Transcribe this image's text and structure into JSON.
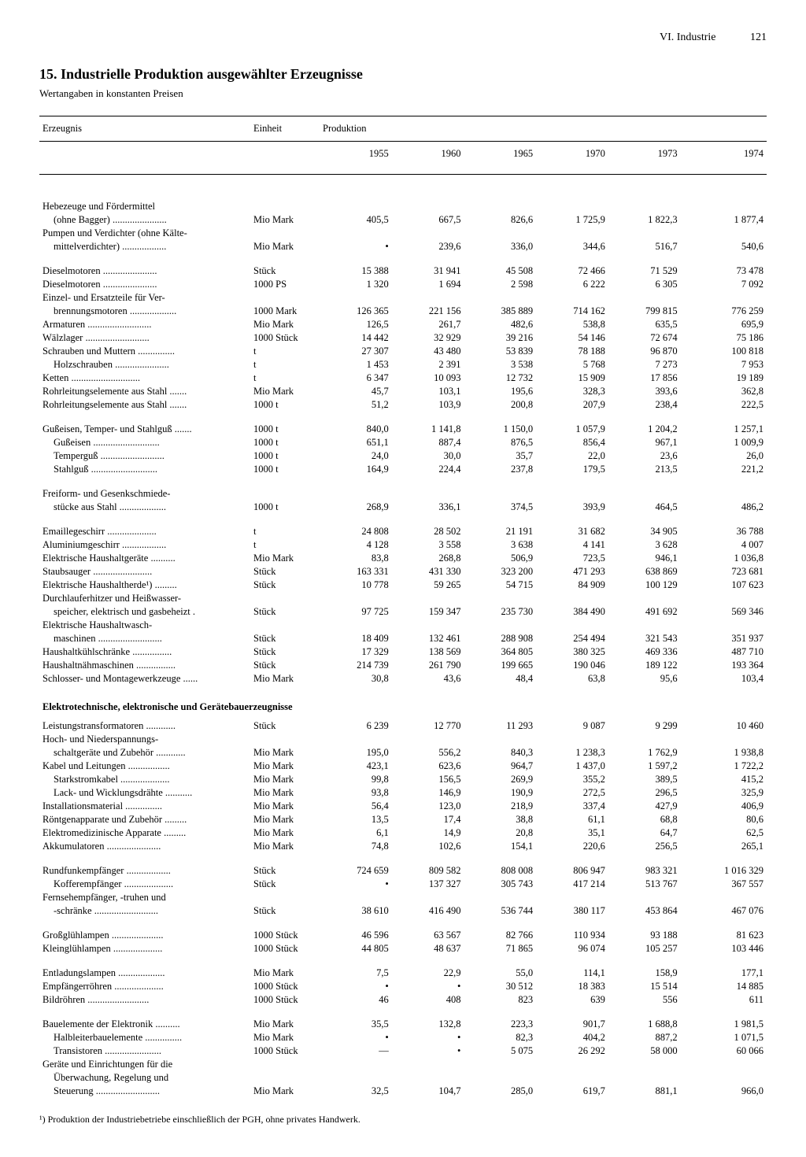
{
  "header": {
    "section": "VI. Industrie",
    "page": "121"
  },
  "title_num": "15.",
  "title": "Industrielle Produktion ausgewählter Erzeugnisse",
  "subtitle": "Wertangaben in konstanten Preisen",
  "col_product": "Erzeugnis",
  "col_unit": "Einheit",
  "col_production": "Produktion",
  "years": [
    "1955",
    "1960",
    "1965",
    "1970",
    "1973",
    "1974"
  ],
  "rows": [
    {
      "t": "biggap"
    },
    {
      "t": "row",
      "label": "Hebezeuge und Fördermittel",
      "cont": true
    },
    {
      "t": "row",
      "label": "(ohne Bagger)",
      "indent": 1,
      "unit": "Mio Mark",
      "v": [
        "405,5",
        "667,5",
        "826,6",
        "1 725,9",
        "1 822,3",
        "1 877,4"
      ]
    },
    {
      "t": "row",
      "label": "Pumpen und Verdichter (ohne Kälte-",
      "cont": true
    },
    {
      "t": "row",
      "label": "mittelverdichter)",
      "indent": 1,
      "unit": "Mio Mark",
      "v": [
        "•",
        "239,6",
        "336,0",
        "344,6",
        "516,7",
        "540,6"
      ]
    },
    {
      "t": "gap"
    },
    {
      "t": "row",
      "label": "Dieselmotoren",
      "unit": "Stück",
      "v": [
        "15 388",
        "31 941",
        "45 508",
        "72 466",
        "71 529",
        "73 478"
      ]
    },
    {
      "t": "row",
      "label": "Dieselmotoren",
      "unit": "1000 PS",
      "v": [
        "1 320",
        "1 694",
        "2 598",
        "6 222",
        "6 305",
        "7 092"
      ]
    },
    {
      "t": "row",
      "label": "Einzel- und Ersatzteile für Ver-",
      "cont": true
    },
    {
      "t": "row",
      "label": "brennungsmotoren",
      "indent": 1,
      "unit": "1000 Mark",
      "v": [
        "126 365",
        "221 156",
        "385 889",
        "714 162",
        "799 815",
        "776 259"
      ]
    },
    {
      "t": "row",
      "label": "Armaturen",
      "unit": "Mio Mark",
      "v": [
        "126,5",
        "261,7",
        "482,6",
        "538,8",
        "635,5",
        "695,9"
      ]
    },
    {
      "t": "row",
      "label": "Wälzlager",
      "unit": "1000 Stück",
      "v": [
        "14 442",
        "32 929",
        "39 216",
        "54 146",
        "72 674",
        "75 186"
      ]
    },
    {
      "t": "row",
      "label": "Schrauben und Muttern",
      "unit": "t",
      "v": [
        "27 307",
        "43 480",
        "53 839",
        "78 188",
        "96 870",
        "100 818"
      ]
    },
    {
      "t": "row",
      "label": "Holzschrauben",
      "indent": 1,
      "unit": "t",
      "v": [
        "1 453",
        "2 391",
        "3 538",
        "5 768",
        "7 273",
        "7 953"
      ]
    },
    {
      "t": "row",
      "label": "Ketten",
      "unit": "t",
      "v": [
        "6 347",
        "10 093",
        "12 732",
        "15 909",
        "17 856",
        "19 189"
      ]
    },
    {
      "t": "row",
      "label": "Rohrleitungselemente aus Stahl",
      "unit": "Mio Mark",
      "v": [
        "45,7",
        "103,1",
        "195,6",
        "328,3",
        "393,6",
        "362,8"
      ]
    },
    {
      "t": "row",
      "label": "Rohrleitungselemente aus Stahl",
      "unit": "1000 t",
      "v": [
        "51,2",
        "103,9",
        "200,8",
        "207,9",
        "238,4",
        "222,5"
      ]
    },
    {
      "t": "gap"
    },
    {
      "t": "row",
      "label": "Gußeisen, Temper- und Stahlguß",
      "unit": "1000 t",
      "v": [
        "840,0",
        "1 141,8",
        "1 150,0",
        "1 057,9",
        "1 204,2",
        "1 257,1"
      ]
    },
    {
      "t": "row",
      "label": "Gußeisen",
      "indent": 1,
      "unit": "1000 t",
      "v": [
        "651,1",
        "887,4",
        "876,5",
        "856,4",
        "967,1",
        "1 009,9"
      ]
    },
    {
      "t": "row",
      "label": "Temperguß",
      "indent": 1,
      "unit": "1000 t",
      "v": [
        "24,0",
        "30,0",
        "35,7",
        "22,0",
        "23,6",
        "26,0"
      ]
    },
    {
      "t": "row",
      "label": "Stahlguß",
      "indent": 1,
      "unit": "1000 t",
      "v": [
        "164,9",
        "224,4",
        "237,8",
        "179,5",
        "213,5",
        "221,2"
      ]
    },
    {
      "t": "gap"
    },
    {
      "t": "row",
      "label": "Freiform- und Gesenkschmiede-",
      "cont": true
    },
    {
      "t": "row",
      "label": "stücke aus Stahl",
      "indent": 1,
      "unit": "1000 t",
      "v": [
        "268,9",
        "336,1",
        "374,5",
        "393,9",
        "464,5",
        "486,2"
      ]
    },
    {
      "t": "gap"
    },
    {
      "t": "row",
      "label": "Emaillegeschirr",
      "unit": "t",
      "v": [
        "24 808",
        "28 502",
        "21 191",
        "31 682",
        "34 905",
        "36 788"
      ]
    },
    {
      "t": "row",
      "label": "Aluminiumgeschirr",
      "unit": "t",
      "v": [
        "4 128",
        "3 558",
        "3 638",
        "4 141",
        "3 628",
        "4 007"
      ]
    },
    {
      "t": "row",
      "label": "Elektrische Haushaltgeräte",
      "unit": "Mio Mark",
      "v": [
        "83,8",
        "268,8",
        "506,9",
        "723,5",
        "946,1",
        "1 036,8"
      ]
    },
    {
      "t": "row",
      "label": "Staubsauger",
      "unit": "Stück",
      "v": [
        "163 331",
        "431 330",
        "323 200",
        "471 293",
        "638 869",
        "723 681"
      ]
    },
    {
      "t": "row",
      "label": "Elektrische Haushaltherde¹)",
      "unit": "Stück",
      "v": [
        "10 778",
        "59 265",
        "54 715",
        "84 909",
        "100 129",
        "107 623"
      ]
    },
    {
      "t": "row",
      "label": "Durchlauferhitzer und Heißwasser-",
      "cont": true
    },
    {
      "t": "row",
      "label": "speicher, elektrisch und gasbeheizt .",
      "indent": 1,
      "unit": "Stück",
      "v": [
        "97 725",
        "159 347",
        "235 730",
        "384 490",
        "491 692",
        "569 346"
      ]
    },
    {
      "t": "row",
      "label": "Elektrische Haushaltwasch-",
      "cont": true
    },
    {
      "t": "row",
      "label": "maschinen",
      "indent": 1,
      "unit": "Stück",
      "v": [
        "18 409",
        "132 461",
        "288 908",
        "254 494",
        "321 543",
        "351 937"
      ]
    },
    {
      "t": "row",
      "label": "Haushaltkühlschränke",
      "unit": "Stück",
      "v": [
        "17 329",
        "138 569",
        "364 805",
        "380 325",
        "469 336",
        "487 710"
      ]
    },
    {
      "t": "row",
      "label": "Haushaltnähmaschinen",
      "unit": "Stück",
      "v": [
        "214 739",
        "261 790",
        "199 665",
        "190 046",
        "189 122",
        "193 364"
      ]
    },
    {
      "t": "row",
      "label": "Schlosser- und Montagewerkzeuge",
      "unit": "Mio Mark",
      "v": [
        "30,8",
        "43,6",
        "48,4",
        "63,8",
        "95,6",
        "103,4"
      ]
    },
    {
      "t": "sub",
      "label": "Elektrotechnische, elektronische und Gerätebauerzeugnisse"
    },
    {
      "t": "row",
      "label": "Leistungstransformatoren",
      "unit": "Stück",
      "v": [
        "6 239",
        "12 770",
        "11 293",
        "9 087",
        "9 299",
        "10 460"
      ]
    },
    {
      "t": "row",
      "label": "Hoch- und Niederspannungs-",
      "cont": true
    },
    {
      "t": "row",
      "label": "schaltgeräte und Zubehör",
      "indent": 1,
      "unit": "Mio Mark",
      "v": [
        "195,0",
        "556,2",
        "840,3",
        "1 238,3",
        "1 762,9",
        "1 938,8"
      ]
    },
    {
      "t": "row",
      "label": "Kabel und Leitungen",
      "unit": "Mio Mark",
      "v": [
        "423,1",
        "623,6",
        "964,7",
        "1 437,0",
        "1 597,2",
        "1 722,2"
      ]
    },
    {
      "t": "row",
      "label": "Starkstromkabel",
      "indent": 1,
      "unit": "Mio Mark",
      "v": [
        "99,8",
        "156,5",
        "269,9",
        "355,2",
        "389,5",
        "415,2"
      ]
    },
    {
      "t": "row",
      "label": "Lack- und Wicklungsdrähte",
      "indent": 1,
      "unit": "Mio Mark",
      "v": [
        "93,8",
        "146,9",
        "190,9",
        "272,5",
        "296,5",
        "325,9"
      ]
    },
    {
      "t": "row",
      "label": "Installationsmaterial",
      "unit": "Mio Mark",
      "v": [
        "56,4",
        "123,0",
        "218,9",
        "337,4",
        "427,9",
        "406,9"
      ]
    },
    {
      "t": "row",
      "label": "Röntgenapparate und Zubehör",
      "unit": "Mio Mark",
      "v": [
        "13,5",
        "17,4",
        "38,8",
        "61,1",
        "68,8",
        "80,6"
      ]
    },
    {
      "t": "row",
      "label": "Elektromedizinische Apparate",
      "unit": "Mio Mark",
      "v": [
        "6,1",
        "14,9",
        "20,8",
        "35,1",
        "64,7",
        "62,5"
      ]
    },
    {
      "t": "row",
      "label": "Akkumulatoren",
      "unit": "Mio Mark",
      "v": [
        "74,8",
        "102,6",
        "154,1",
        "220,6",
        "256,5",
        "265,1"
      ]
    },
    {
      "t": "gap"
    },
    {
      "t": "row",
      "label": "Rundfunkempfänger",
      "unit": "Stück",
      "v": [
        "724 659",
        "809 582",
        "808 008",
        "806 947",
        "983 321",
        "1 016 329"
      ]
    },
    {
      "t": "row",
      "label": "Kofferempfänger",
      "indent": 1,
      "unit": "Stück",
      "v": [
        "•",
        "137 327",
        "305 743",
        "417 214",
        "513 767",
        "367 557"
      ]
    },
    {
      "t": "row",
      "label": "Fernsehempfänger, -truhen und",
      "cont": true
    },
    {
      "t": "row",
      "label": "-schränke",
      "indent": 1,
      "unit": "Stück",
      "v": [
        "38 610",
        "416 490",
        "536 744",
        "380 117",
        "453 864",
        "467 076"
      ]
    },
    {
      "t": "gap"
    },
    {
      "t": "row",
      "label": "Großglühlampen",
      "unit": "1000 Stück",
      "v": [
        "46 596",
        "63 567",
        "82 766",
        "110 934",
        "93 188",
        "81 623"
      ]
    },
    {
      "t": "row",
      "label": "Kleinglühlampen",
      "unit": "1000 Stück",
      "v": [
        "44 805",
        "48 637",
        "71 865",
        "96 074",
        "105 257",
        "103 446"
      ]
    },
    {
      "t": "gap"
    },
    {
      "t": "row",
      "label": "Entladungslampen",
      "unit": "Mio Mark",
      "v": [
        "7,5",
        "22,9",
        "55,0",
        "114,1",
        "158,9",
        "177,1"
      ]
    },
    {
      "t": "row",
      "label": "Empfängerröhren",
      "unit": "1000 Stück",
      "v": [
        "•",
        "•",
        "30 512",
        "18 383",
        "15 514",
        "14 885"
      ]
    },
    {
      "t": "row",
      "label": "Bildröhren",
      "unit": "1000 Stück",
      "v": [
        "46",
        "408",
        "823",
        "639",
        "556",
        "611"
      ]
    },
    {
      "t": "gap"
    },
    {
      "t": "row",
      "label": "Bauelemente der Elektronik",
      "unit": "Mio Mark",
      "v": [
        "35,5",
        "132,8",
        "223,3",
        "901,7",
        "1 688,8",
        "1 981,5"
      ]
    },
    {
      "t": "row",
      "label": "Halbleiterbauelemente",
      "indent": 1,
      "unit": "Mio Mark",
      "v": [
        "•",
        "•",
        "82,3",
        "404,2",
        "887,2",
        "1 071,5"
      ]
    },
    {
      "t": "row",
      "label": "Transistoren",
      "indent": 1,
      "unit": "1000 Stück",
      "v": [
        "—",
        "•",
        "5 075",
        "26 292",
        "58 000",
        "60 066"
      ]
    },
    {
      "t": "row",
      "label": "Geräte und Einrichtungen für die",
      "cont": true
    },
    {
      "t": "row",
      "label": "Überwachung, Regelung und",
      "indent": 1,
      "cont": true
    },
    {
      "t": "row",
      "label": "Steuerung",
      "indent": 1,
      "unit": "Mio Mark",
      "v": [
        "32,5",
        "104,7",
        "285,0",
        "619,7",
        "881,1",
        "966,0"
      ]
    }
  ],
  "footnote": "¹) Produktion der Industriebetriebe einschließlich der PGH, ohne privates Handwerk."
}
